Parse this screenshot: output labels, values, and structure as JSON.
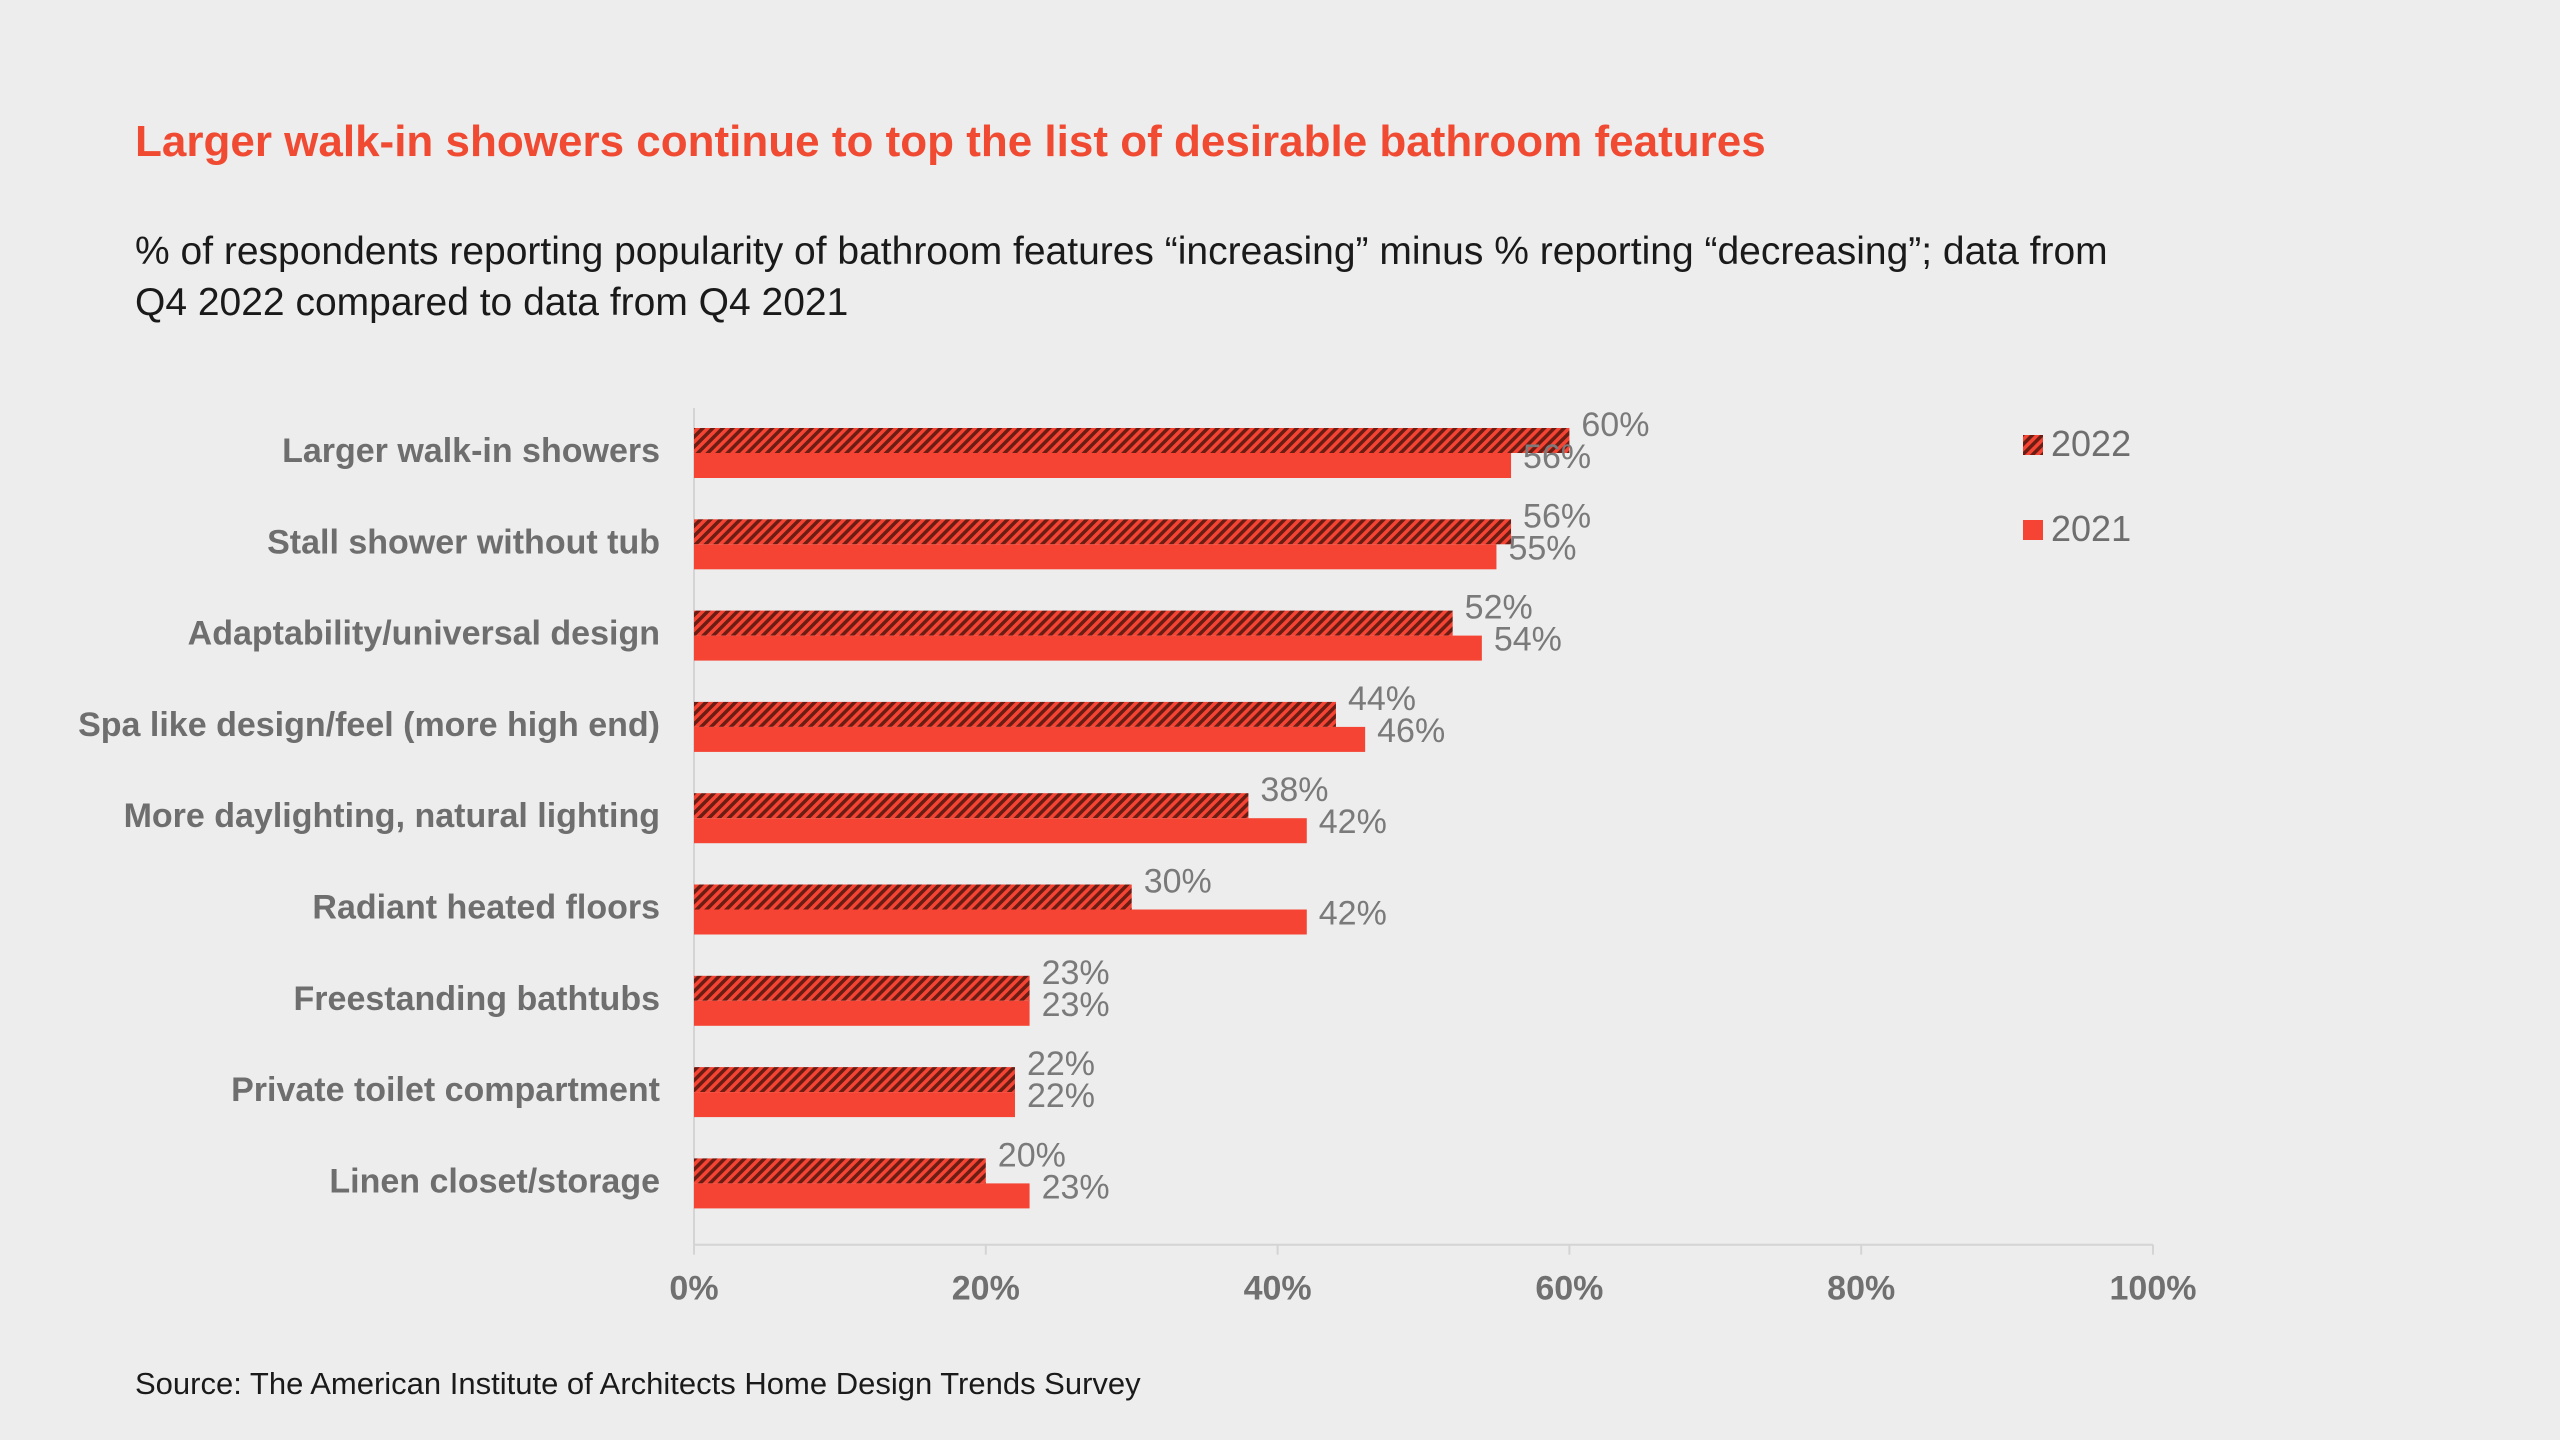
{
  "header": {
    "title": "Larger walk-in showers continue to top the list of desirable bathroom features",
    "subtitle_line1": "% of respondents reporting popularity of bathroom features “increasing” minus % reporting “decreasing”; data from",
    "subtitle_line2": "Q4 2022 compared to data from Q4 2021"
  },
  "footer": {
    "source": "Source: The American Institute of Architects Home Design Trends Survey"
  },
  "colors": {
    "bar_2021": "#f54433",
    "bar_2022_base": "#f54433",
    "bar_2022_hatch": "#6b1d14",
    "title": "#f04b32"
  },
  "chart_data": {
    "type": "bar",
    "orientation": "horizontal",
    "categories": [
      "Larger walk-in showers",
      "Stall shower without tub",
      "Adaptability/universal design",
      "Spa like design/feel (more high end)",
      "More daylighting, natural lighting",
      "Radiant heated floors",
      "Freestanding bathtubs",
      "Private toilet compartment",
      "Linen closet/storage"
    ],
    "series": [
      {
        "name": "2022",
        "values": [
          60,
          56,
          52,
          44,
          38,
          30,
          23,
          22,
          20
        ],
        "labels": [
          "60%",
          "56%",
          "52%",
          "44%",
          "38%",
          "30%",
          "23%",
          "22%",
          "20%"
        ]
      },
      {
        "name": "2021",
        "values": [
          56,
          55,
          54,
          46,
          42,
          42,
          23,
          22,
          23
        ],
        "labels": [
          "56%",
          "55%",
          "54%",
          "46%",
          "42%",
          "42%",
          "23%",
          "22%",
          "23%"
        ]
      }
    ],
    "x_ticks": [
      "0%",
      "20%",
      "40%",
      "60%",
      "80%",
      "100%"
    ],
    "xlim": [
      0,
      100
    ],
    "legend_position": "top-right",
    "grid": false
  }
}
